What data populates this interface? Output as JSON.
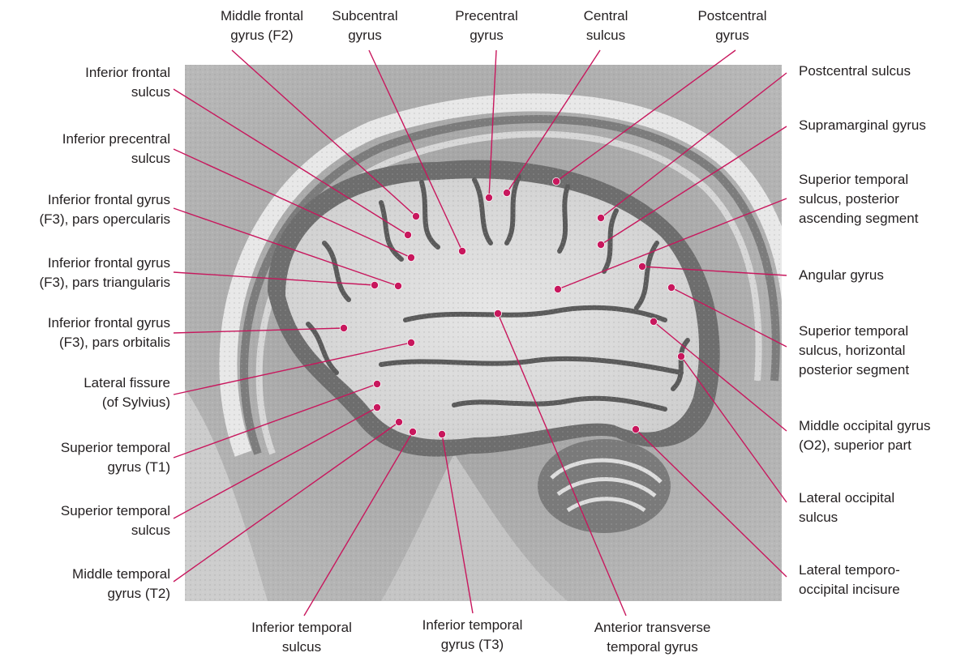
{
  "colors": {
    "leader": "#c8175d",
    "dot": "#c8175d",
    "text": "#231f20",
    "background": "#ffffff",
    "scan_dark": "#5d5d5d",
    "scan_grey": "#8c8c8c",
    "scan_light": "#d8d8d8",
    "white_matter": "#e4e4e4"
  },
  "image": {
    "description_icon": "mri-sagittal-brain-scan"
  },
  "labels": {
    "top": [
      {
        "id": "middle-frontal-gyrus",
        "lines": [
          "Middle frontal",
          "gyrus (F2)"
        ]
      },
      {
        "id": "subcentral-gyrus",
        "lines": [
          "Subcentral",
          "gyrus"
        ]
      },
      {
        "id": "precentral-gyrus",
        "lines": [
          "Precentral",
          "gyrus"
        ]
      },
      {
        "id": "central-sulcus",
        "lines": [
          "Central",
          "sulcus"
        ]
      },
      {
        "id": "postcentral-gyrus",
        "lines": [
          "Postcentral",
          "gyrus"
        ]
      }
    ],
    "left": [
      {
        "id": "inferior-frontal-sulcus",
        "lines": [
          "Inferior frontal",
          "sulcus"
        ]
      },
      {
        "id": "inferior-precentral-sulcus",
        "lines": [
          "Inferior precentral",
          "sulcus"
        ]
      },
      {
        "id": "ifg-pars-opercularis",
        "lines": [
          "Inferior frontal gyrus",
          "(F3), pars opercularis"
        ]
      },
      {
        "id": "ifg-pars-triangularis",
        "lines": [
          "Inferior frontal gyrus",
          "(F3), pars triangularis"
        ]
      },
      {
        "id": "ifg-pars-orbitalis",
        "lines": [
          "Inferior frontal gyrus",
          "(F3), pars orbitalis"
        ]
      },
      {
        "id": "lateral-fissure",
        "lines": [
          "Lateral fissure",
          "(of Sylvius)"
        ]
      },
      {
        "id": "superior-temporal-gyrus",
        "lines": [
          "Superior temporal",
          "gyrus (T1)"
        ]
      },
      {
        "id": "superior-temporal-sulcus",
        "lines": [
          "Superior temporal",
          "sulcus"
        ]
      },
      {
        "id": "middle-temporal-gyrus",
        "lines": [
          "Middle temporal",
          "gyrus (T2)"
        ]
      }
    ],
    "right": [
      {
        "id": "postcentral-sulcus",
        "lines": [
          "Postcentral sulcus"
        ]
      },
      {
        "id": "supramarginal-gyrus",
        "lines": [
          "Supramarginal gyrus"
        ]
      },
      {
        "id": "sts-posterior-ascending",
        "lines": [
          "Superior temporal",
          "sulcus, posterior",
          "ascending segment"
        ]
      },
      {
        "id": "angular-gyrus",
        "lines": [
          "Angular gyrus"
        ]
      },
      {
        "id": "sts-horizontal-posterior",
        "lines": [
          "Superior temporal",
          "sulcus, horizontal",
          "posterior segment"
        ]
      },
      {
        "id": "middle-occipital-gyrus",
        "lines": [
          "Middle occipital gyrus",
          "(O2), superior part"
        ]
      },
      {
        "id": "lateral-occipital-sulcus",
        "lines": [
          "Lateral occipital",
          "sulcus"
        ]
      },
      {
        "id": "lateral-temporo-occipital-incisure",
        "lines": [
          "Lateral temporo-",
          "occipital incisure"
        ]
      }
    ],
    "bottom": [
      {
        "id": "inferior-temporal-sulcus",
        "lines": [
          "Inferior temporal",
          "sulcus"
        ]
      },
      {
        "id": "inferior-temporal-gyrus",
        "lines": [
          "Inferior temporal",
          "gyrus (T3)"
        ]
      },
      {
        "id": "anterior-transverse-temporal-gyrus",
        "lines": [
          "Anterior transverse",
          "temporal gyrus"
        ]
      }
    ]
  }
}
